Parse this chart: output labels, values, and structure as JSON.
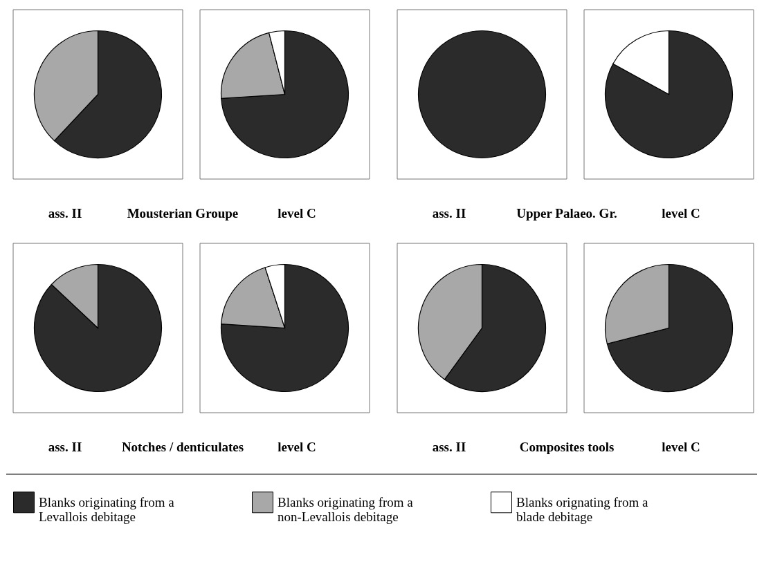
{
  "chart_data": [
    {
      "type": "pie",
      "title": "ass. II",
      "annotations": [
        "Mousterian Groupe"
      ],
      "categories": [
        null,
        null
      ],
      "values": [
        62,
        38
      ],
      "colors": [
        "#2b2b2b",
        "#a8a8a8"
      ]
    },
    {
      "type": "pie",
      "title": "level C",
      "categories": [
        null,
        null,
        null
      ],
      "values": [
        74,
        22,
        4
      ],
      "colors": [
        "#2b2b2b",
        "#a8a8a8",
        "#ffffff"
      ]
    },
    {
      "type": "pie",
      "title": "ass. II",
      "annotations": [
        "Upper Palaeo. Gr."
      ],
      "categories": [
        null
      ],
      "values": [
        100
      ],
      "colors": [
        "#2b2b2b"
      ]
    },
    {
      "type": "pie",
      "title": "level C",
      "categories": [
        null,
        null
      ],
      "values": [
        83,
        17
      ],
      "colors": [
        "#2b2b2b",
        "#ffffff"
      ]
    },
    {
      "type": "pie",
      "title": "ass. II",
      "annotations": [
        "Notches / denticulates"
      ],
      "categories": [
        null,
        null
      ],
      "values": [
        87,
        13
      ],
      "colors": [
        "#2b2b2b",
        "#a8a8a8"
      ]
    },
    {
      "type": "pie",
      "title": "level C",
      "categories": [
        "Blanks originating from a Levallois debitage",
        "Blanks originating from a non-Levallois debitage",
        "Blanks orignating from a blade debitage"
      ],
      "values": [
        76,
        19,
        5
      ],
      "colors": [
        "#2b2b2b",
        "#a8a8a8",
        "#ffffff"
      ],
      "legend": "bottom"
    },
    {
      "type": "pie",
      "title": "ass. II",
      "annotations": [
        "Composites tools"
      ],
      "categories": [
        null,
        null
      ],
      "values": [
        60,
        40
      ],
      "colors": [
        "#2b2b2b",
        "#a8a8a8"
      ]
    },
    {
      "type": "pie",
      "title": "level C",
      "categories": [
        null,
        null
      ],
      "values": [
        71,
        29
      ],
      "colors": [
        "#2b2b2b",
        "#a8a8a8"
      ]
    }
  ]
}
